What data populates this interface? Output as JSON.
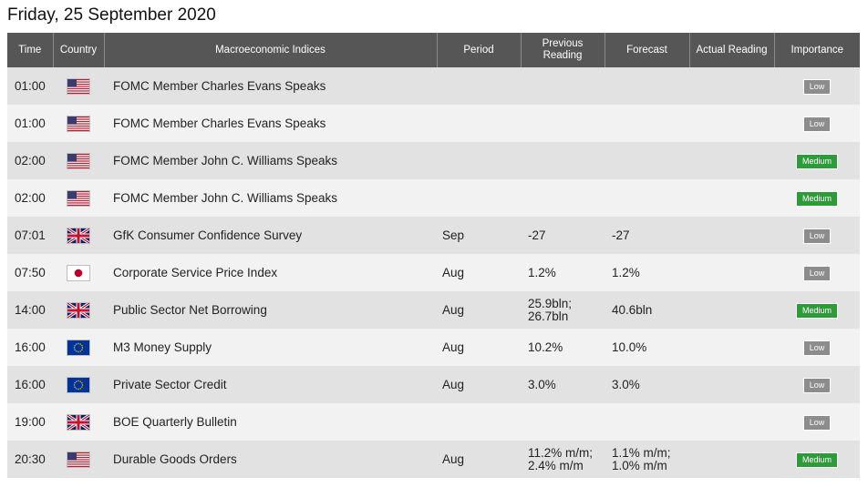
{
  "date_title": "Friday, 25 September 2020",
  "headers": {
    "time": "Time",
    "country": "Country",
    "indices": "Macroeconomic Indices",
    "period": "Period",
    "previous_l1": "Previous",
    "previous_l2": "Reading",
    "forecast": "Forecast",
    "actual": "Actual Reading",
    "importance": "Importance"
  },
  "colors": {
    "header_bg": "#565656",
    "row_odd": "#e2e2e2",
    "row_even": "#f2f2f2",
    "badge_low": "#8c8c8c",
    "badge_medium": "#2e9b3b"
  },
  "rows": [
    {
      "time": "01:00",
      "flag": "us-flag-icon",
      "event": "FOMC Member Charles Evans Speaks",
      "period": "",
      "previous": [],
      "forecast": [],
      "actual": "",
      "importance": "Low",
      "level": "low"
    },
    {
      "time": "01:00",
      "flag": "us-flag-icon",
      "event": "FOMC Member Charles Evans Speaks",
      "period": "",
      "previous": [],
      "forecast": [],
      "actual": "",
      "importance": "Low",
      "level": "low"
    },
    {
      "time": "02:00",
      "flag": "us-flag-icon",
      "event": "FOMC Member John C. Williams Speaks",
      "period": "",
      "previous": [],
      "forecast": [],
      "actual": "",
      "importance": "Medium",
      "level": "medium"
    },
    {
      "time": "02:00",
      "flag": "us-flag-icon",
      "event": "FOMC Member John C. Williams Speaks",
      "period": "",
      "previous": [],
      "forecast": [],
      "actual": "",
      "importance": "Medium",
      "level": "medium"
    },
    {
      "time": "07:01",
      "flag": "uk-flag-icon",
      "event": "GfK Consumer Confidence Survey",
      "period": "Sep",
      "previous": [
        "-27"
      ],
      "forecast": [
        "-27"
      ],
      "actual": "",
      "importance": "Low",
      "level": "low"
    },
    {
      "time": "07:50",
      "flag": "jp-flag-icon",
      "event": "Corporate Service Price Index",
      "period": "Aug",
      "previous": [
        "1.2%"
      ],
      "forecast": [
        "1.2%"
      ],
      "actual": "",
      "importance": "Low",
      "level": "low"
    },
    {
      "time": "14:00",
      "flag": "uk-flag-icon",
      "event": "Public Sector Net Borrowing",
      "period": "Aug",
      "previous": [
        "25.9bln;",
        "26.7bln"
      ],
      "forecast": [
        "40.6bln"
      ],
      "actual": "",
      "importance": "Medium",
      "level": "medium"
    },
    {
      "time": "16:00",
      "flag": "eu-flag-icon",
      "event": "M3 Money Supply",
      "period": "Aug",
      "previous": [
        "10.2%"
      ],
      "forecast": [
        "10.0%"
      ],
      "actual": "",
      "importance": "Low",
      "level": "low"
    },
    {
      "time": "16:00",
      "flag": "eu-flag-icon",
      "event": "Private Sector Credit",
      "period": "Aug",
      "previous": [
        "3.0%"
      ],
      "forecast": [
        "3.0%"
      ],
      "actual": "",
      "importance": "Low",
      "level": "low"
    },
    {
      "time": "19:00",
      "flag": "uk-flag-icon",
      "event": "BOE Quarterly Bulletin",
      "period": "",
      "previous": [],
      "forecast": [],
      "actual": "",
      "importance": "Low",
      "level": "low"
    },
    {
      "time": "20:30",
      "flag": "us-flag-icon",
      "event": "Durable Goods Orders",
      "period": "Aug",
      "previous": [
        "11.2% m/m;",
        "2.4% m/m"
      ],
      "forecast": [
        "1.1% m/m;",
        "1.0% m/m"
      ],
      "actual": "",
      "importance": "Medium",
      "level": "medium"
    }
  ]
}
